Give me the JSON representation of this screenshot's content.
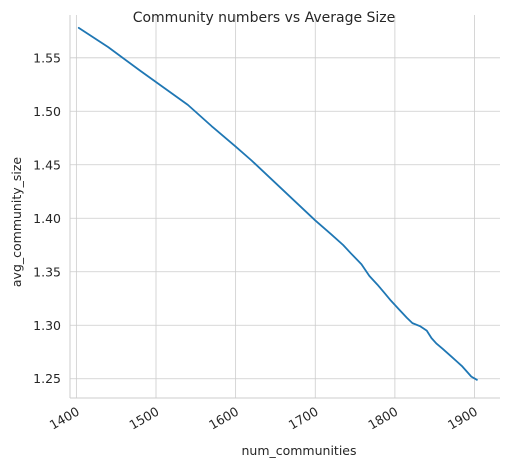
{
  "chart_data": {
    "type": "line",
    "title": "Community numbers vs Average Size",
    "xlabel": "num_communities",
    "ylabel": "avg_community_size",
    "xlim": [
      1392,
      1932
    ],
    "ylim": [
      1.232,
      1.59
    ],
    "xticks": [
      1400,
      1500,
      1600,
      1700,
      1800,
      1900
    ],
    "yticks": [
      1.25,
      1.3,
      1.35,
      1.4,
      1.45,
      1.5,
      1.55
    ],
    "ytick_labels": [
      "1.25",
      "1.30",
      "1.35",
      "1.40",
      "1.45",
      "1.50",
      "1.55"
    ],
    "grid": true,
    "color": "#1f77b4",
    "series": [
      {
        "x": [
          1403,
          1440,
          1480,
          1510,
          1540,
          1570,
          1600,
          1620,
          1650,
          1680,
          1700,
          1720,
          1735,
          1745,
          1758,
          1768,
          1778,
          1786,
          1795,
          1805,
          1815,
          1822,
          1832,
          1840,
          1846,
          1852,
          1860,
          1866,
          1872,
          1878,
          1884,
          1890,
          1896,
          1903
        ],
        "y": [
          1.578,
          1.56,
          1.538,
          1.522,
          1.506,
          1.486,
          1.467,
          1.454,
          1.433,
          1.412,
          1.398,
          1.385,
          1.375,
          1.367,
          1.357,
          1.346,
          1.338,
          1.331,
          1.323,
          1.315,
          1.307,
          1.302,
          1.299,
          1.295,
          1.288,
          1.283,
          1.278,
          1.274,
          1.27,
          1.266,
          1.262,
          1.257,
          1.252,
          1.249
        ]
      }
    ]
  }
}
